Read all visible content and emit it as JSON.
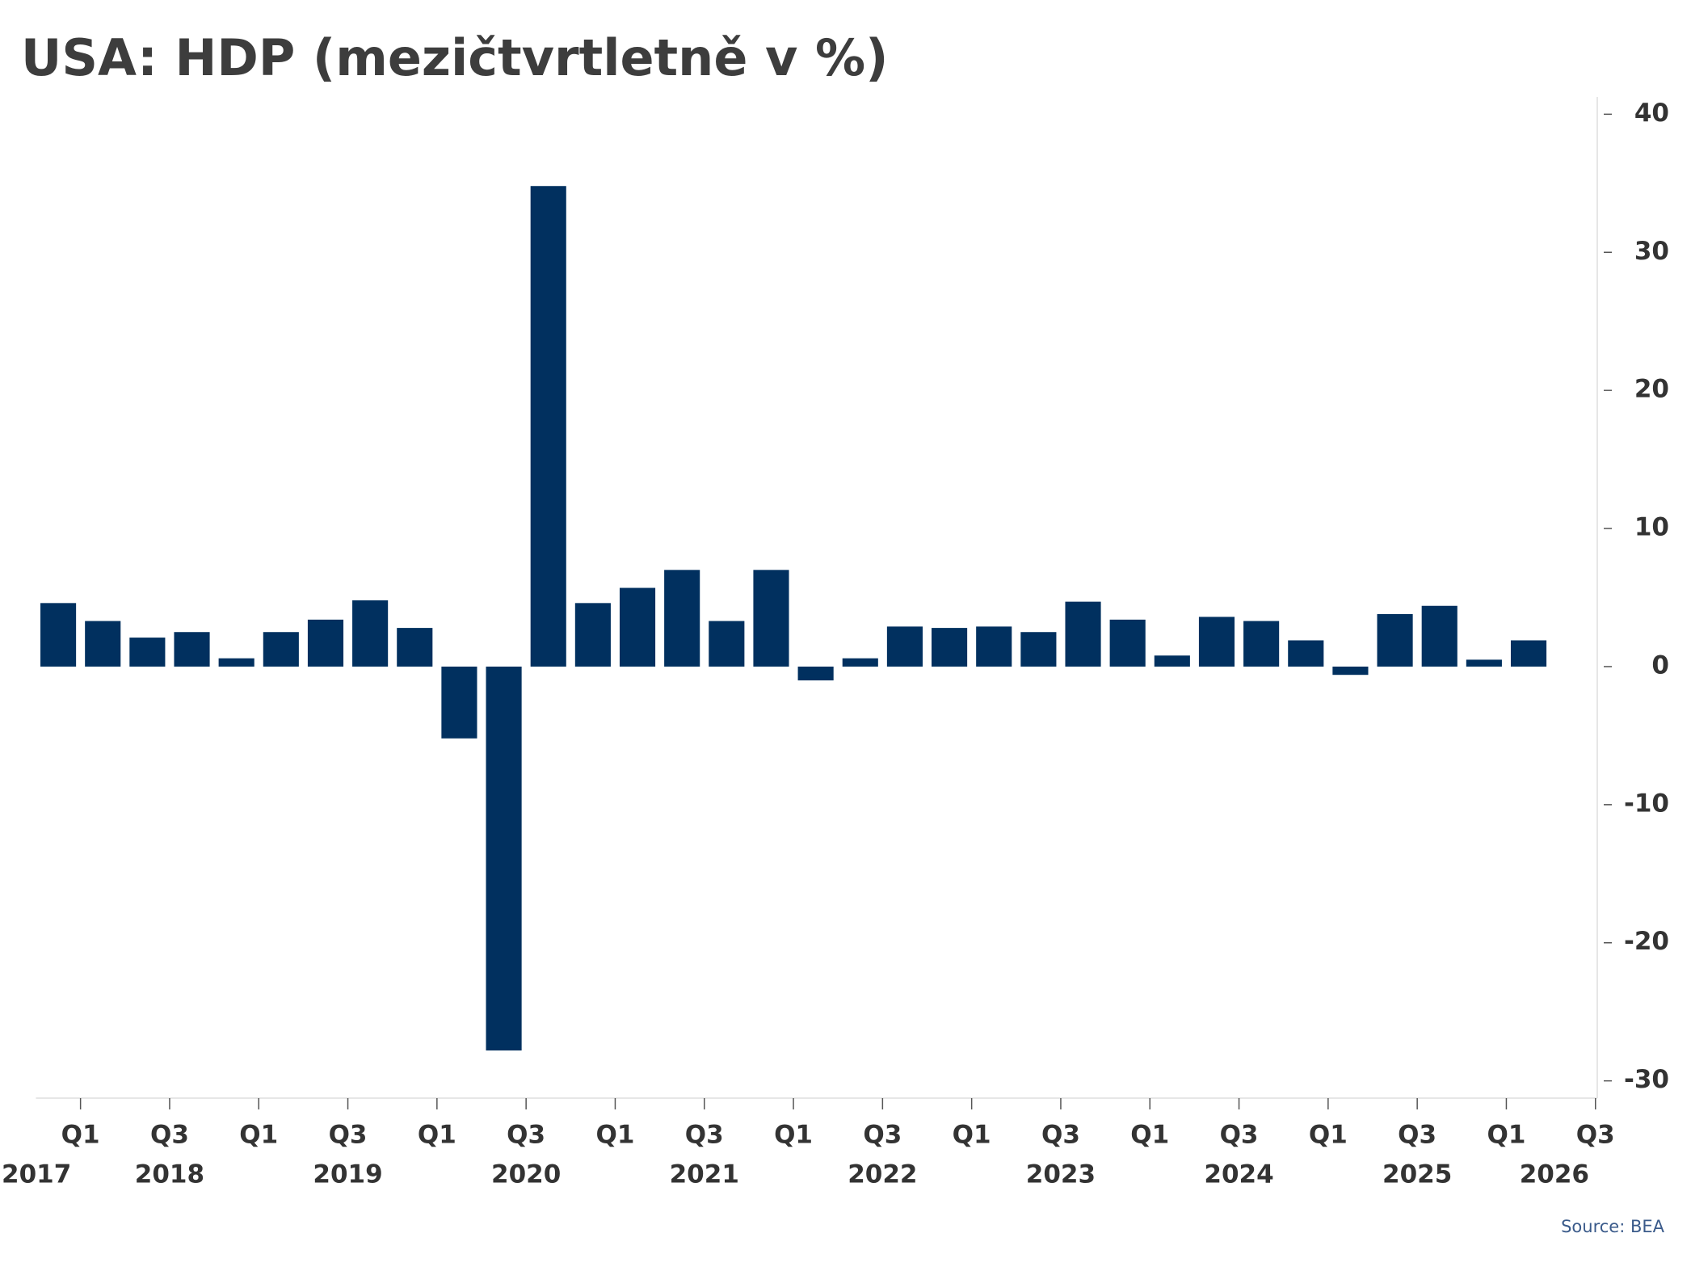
{
  "chart_data": {
    "type": "bar",
    "title": "USA: HDP (mezičtvrtletně v %)",
    "source": "Source: BEA",
    "categories": [
      null,
      null,
      null,
      null,
      null,
      null,
      null,
      null,
      null,
      null,
      null,
      null,
      null,
      null,
      null,
      null,
      null,
      null,
      null,
      null,
      null,
      null,
      null,
      null,
      null,
      null,
      null,
      null,
      null,
      null,
      null,
      null,
      null,
      null
    ],
    "values": [
      4.6,
      3.3,
      2.1,
      2.5,
      0.6,
      2.5,
      3.4,
      4.8,
      2.8,
      -5.2,
      -27.8,
      34.8,
      4.6,
      5.7,
      7.0,
      3.3,
      7.0,
      -1.0,
      0.6,
      2.9,
      2.8,
      2.9,
      2.5,
      4.7,
      3.4,
      0.8,
      3.6,
      3.3,
      1.9,
      -0.6,
      3.8,
      4.4,
      0.5,
      1.9
    ],
    "color": "#01305f",
    "xtick_labels": [
      "Q1",
      "Q3",
      "Q1",
      "Q3",
      "Q1",
      "Q3",
      "Q1",
      "Q3",
      "Q1",
      "Q3",
      "Q1",
      "Q3",
      "Q1",
      "Q3",
      "Q1",
      "Q3",
      "Q1",
      "Q3"
    ],
    "year_labels": [
      "2017",
      "2018",
      "2019",
      "2020",
      "2021",
      "2022",
      "2023",
      "2024",
      "2025",
      "2026"
    ],
    "ylim": [
      -31.25,
      41.25
    ],
    "yticks": [
      -30,
      -20,
      -10,
      0,
      10,
      20,
      30,
      40
    ],
    "y_axis_side": "right"
  }
}
